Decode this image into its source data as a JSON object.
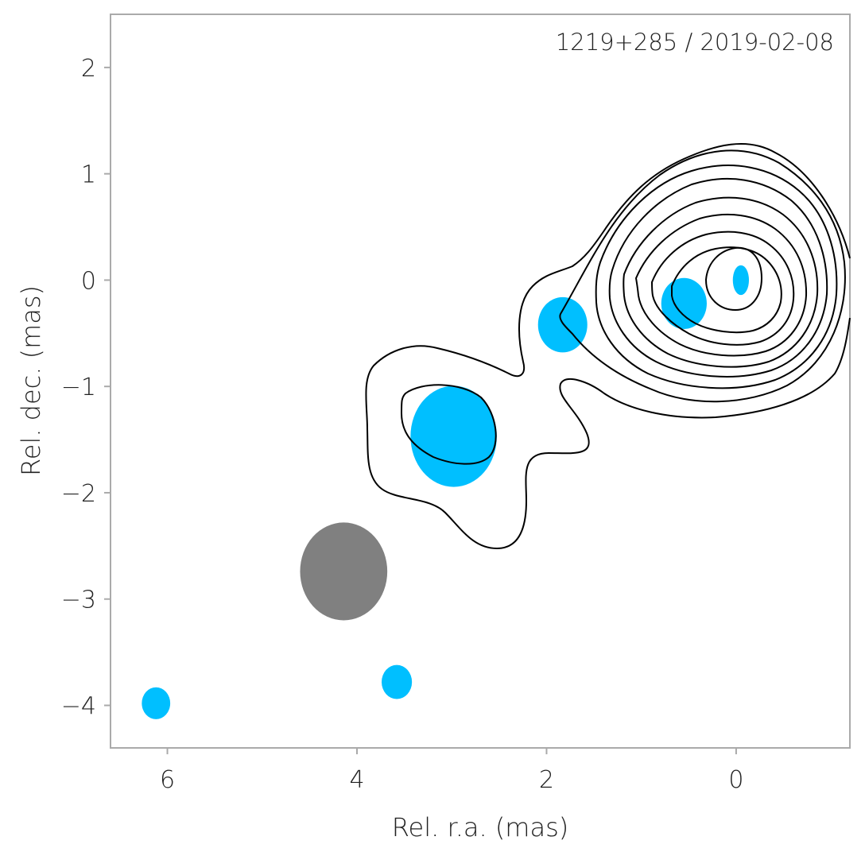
{
  "chart_data": {
    "type": "scatter",
    "title": "1219+285 / 2019-02-08",
    "xlabel": "Rel. r.a. (mas)",
    "ylabel": "Rel. dec. (mas)",
    "xlim": [
      6.6,
      -1.2
    ],
    "ylim": [
      -4.4,
      2.5
    ],
    "x_ticks": [
      6,
      4,
      2,
      0
    ],
    "x_tick_labels": [
      "6",
      "4",
      "2",
      "0"
    ],
    "y_ticks": [
      2,
      1,
      0,
      -1,
      -2,
      -3,
      -4
    ],
    "y_tick_labels": [
      "2",
      "1",
      "0",
      "−1",
      "−2",
      "−3",
      "−4"
    ],
    "grid": false,
    "component_color": "#00BFFF",
    "beam_color": "#808080",
    "contour_color": "#000000",
    "components": [
      {
        "x": -0.05,
        "y": 0.0,
        "maj": 0.28,
        "min": 0.17,
        "pa": 0
      },
      {
        "x": 0.55,
        "y": -0.22,
        "maj": 0.48,
        "min": 0.48,
        "pa": 0
      },
      {
        "x": 1.83,
        "y": -0.42,
        "maj": 0.52,
        "min": 0.52,
        "pa": 0
      },
      {
        "x": 2.98,
        "y": -1.47,
        "maj": 0.95,
        "min": 0.91,
        "pa": 0
      },
      {
        "x": 3.58,
        "y": -3.78,
        "maj": 0.32,
        "min": 0.32,
        "pa": 0
      },
      {
        "x": 6.12,
        "y": -3.98,
        "maj": 0.3,
        "min": 0.3,
        "pa": 0
      }
    ],
    "beam": {
      "x": 4.14,
      "y": -2.74,
      "maj": 0.92,
      "min": 0.92,
      "pa": 0
    }
  }
}
